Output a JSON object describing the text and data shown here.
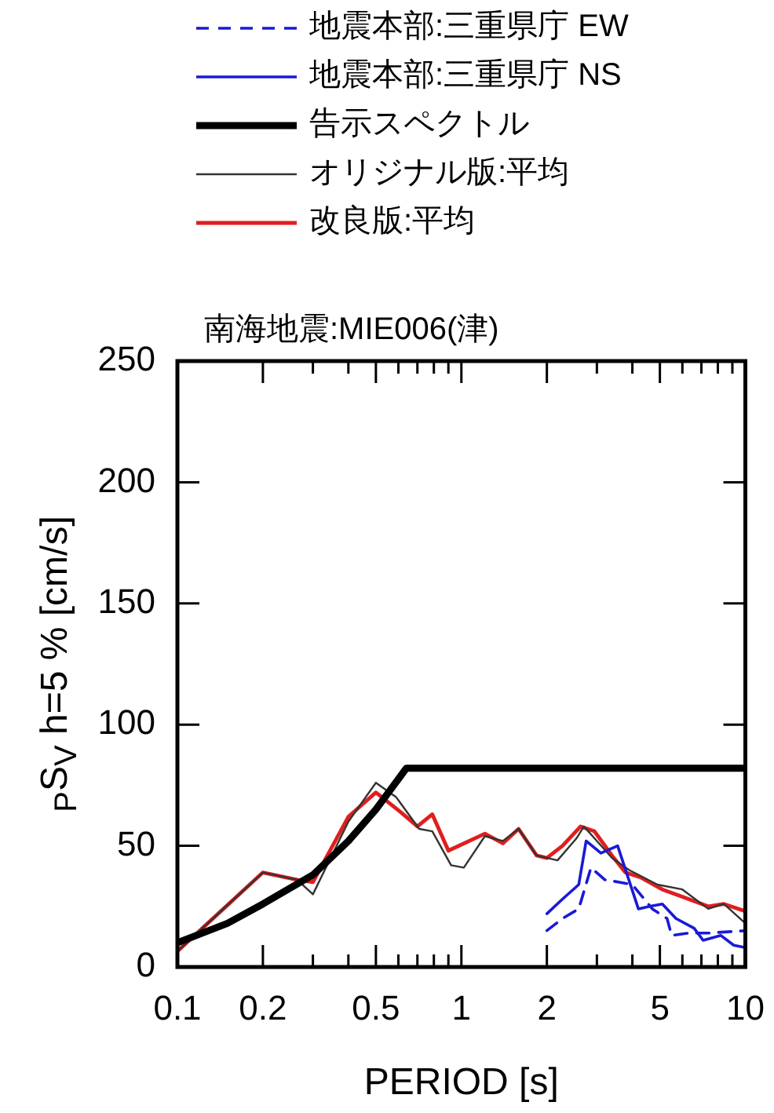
{
  "chart_data": {
    "type": "line",
    "title": "南海地震:MIE006(津)",
    "xlabel": "PERIOD [s]",
    "ylabel": "$_{P}$S$_{V}$ h=5 % [cm/s]",
    "log": "x",
    "xlim": [
      0.1,
      10
    ],
    "ylim": [
      0,
      250
    ],
    "xticks": [
      0.1,
      0.2,
      {
        "value": 0.3,
        "label": null
      },
      {
        "value": 0.4,
        "label": null
      },
      0.5,
      {
        "value": 0.6,
        "label": null
      },
      {
        "value": 0.7,
        "label": null
      },
      {
        "value": 0.8,
        "label": null
      },
      {
        "value": 0.9,
        "label": null
      },
      1,
      2,
      {
        "value": 3,
        "label": null
      },
      {
        "value": 4,
        "label": null
      },
      5,
      {
        "value": 6,
        "label": null
      },
      {
        "value": 7,
        "label": null
      },
      {
        "value": 8,
        "label": null
      },
      {
        "value": 9,
        "label": null
      },
      10
    ],
    "yticks": [
      0,
      50,
      100,
      150,
      200,
      250
    ],
    "grid": false,
    "legend": "top",
    "marker": "none",
    "series": [
      {
        "name": "地震本部:三重県庁 EW",
        "color": "#1a1ad6",
        "line_style": "dashed",
        "x": [
          2.0,
          2.27,
          2.59,
          2.86,
          3.2,
          3.6,
          4.0,
          4.7,
          5.3,
          5.5,
          6.3,
          7.4,
          10
        ],
        "values": [
          15,
          20,
          24,
          41,
          36,
          35,
          34,
          24,
          20,
          13,
          14,
          14,
          15
        ]
      },
      {
        "name": "地震本部:三重県庁 NS",
        "color": "#1a1ad6",
        "line_style": "solid",
        "x": [
          2.0,
          2.27,
          2.59,
          2.75,
          3.1,
          3.55,
          4.2,
          4.6,
          5.1,
          5.7,
          6.6,
          7.1,
          8.2,
          9.1,
          10
        ],
        "values": [
          22,
          28,
          34,
          52,
          47,
          50,
          24,
          25,
          26,
          20,
          16,
          11,
          13,
          9,
          8
        ]
      },
      {
        "name": "告示スペクトル",
        "color": "#000000",
        "line_style": "solid",
        "x": [
          0.1,
          0.15,
          0.2,
          0.3,
          0.4,
          0.5,
          0.64,
          10
        ],
        "values": [
          10,
          18,
          26,
          38,
          52,
          65,
          82,
          82
        ]
      },
      {
        "name": "オリジナル版:平均",
        "color": "#333333",
        "line_style": "solid",
        "x": [
          0.1,
          0.2,
          0.264,
          0.3,
          0.4,
          0.5,
          0.59,
          0.71,
          0.79,
          0.92,
          1.02,
          1.21,
          1.4,
          1.59,
          1.84,
          2.18,
          2.54,
          2.7,
          3.39,
          3.9,
          4.9,
          6.0,
          7.4,
          8.4,
          10
        ],
        "values": [
          6.5,
          39,
          36,
          30,
          60,
          76,
          70,
          57,
          56,
          42,
          41,
          54,
          52,
          57,
          46,
          44,
          53,
          58,
          45,
          40,
          34,
          32,
          24,
          26,
          18
        ]
      },
      {
        "name": "改良版:平均",
        "color": "#e01e1e",
        "line_style": "solid",
        "x": [
          0.1,
          0.2,
          0.264,
          0.3,
          0.4,
          0.5,
          0.61,
          0.7,
          0.79,
          0.9,
          1.21,
          1.4,
          1.59,
          1.84,
          2.0,
          2.27,
          2.63,
          2.94,
          3.39,
          3.78,
          4.27,
          5.1,
          6.0,
          7.4,
          8.4,
          10
        ],
        "values": [
          6.5,
          39,
          36,
          35,
          62,
          72,
          64,
          58,
          63,
          48,
          55,
          51,
          57,
          46,
          45,
          50,
          58,
          56,
          46,
          39,
          37,
          32,
          29,
          25,
          26,
          23
        ]
      }
    ]
  }
}
